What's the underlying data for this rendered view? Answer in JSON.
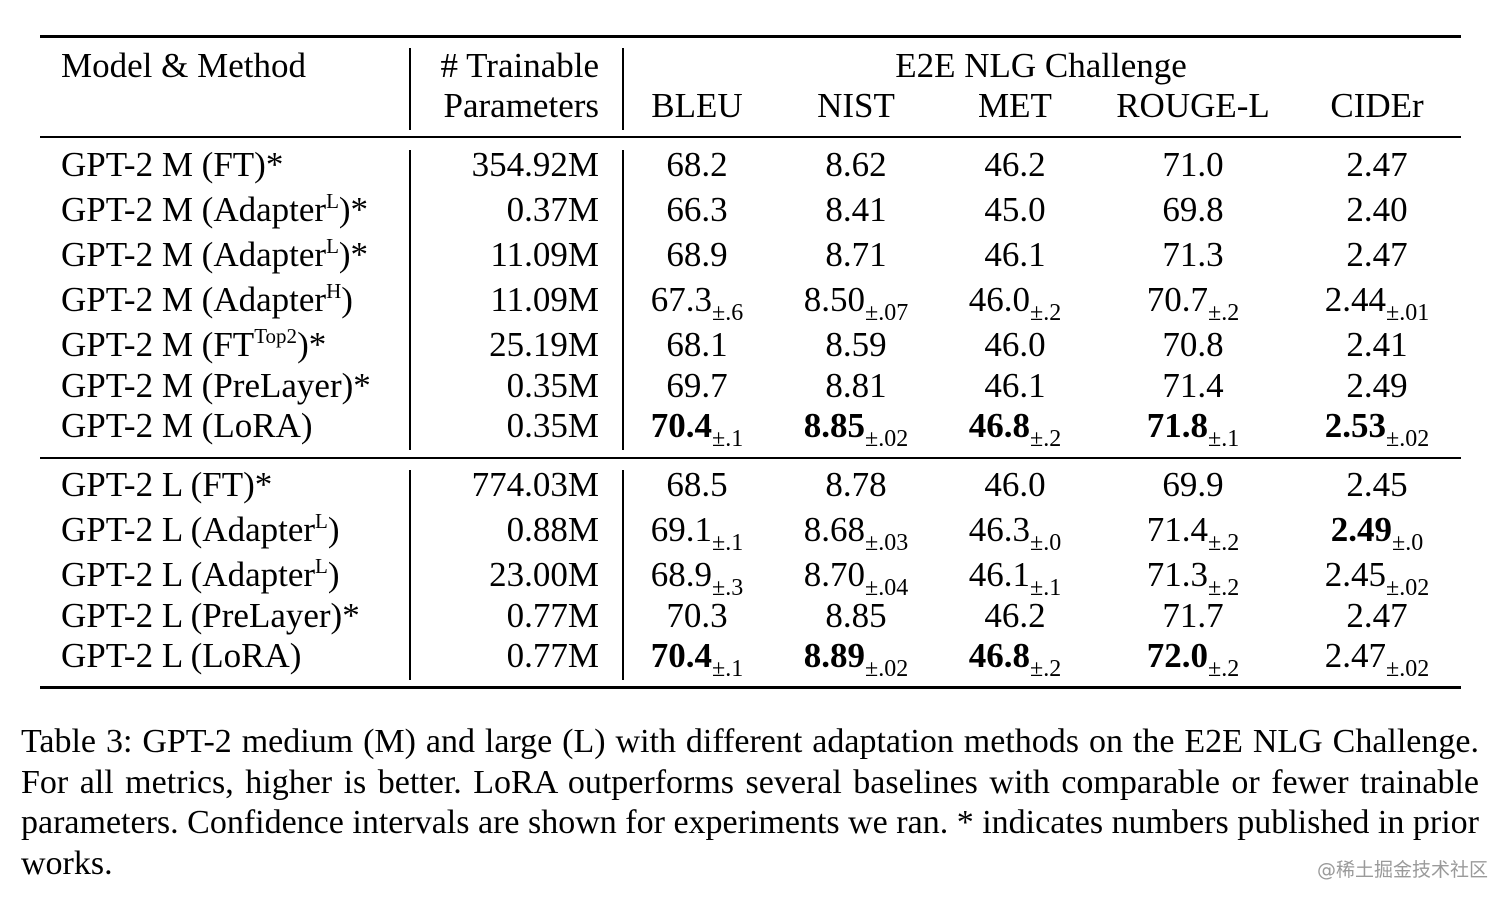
{
  "table": {
    "headers": {
      "model_method": "Model & Method",
      "trainable_line1": "# Trainable",
      "trainable_line2": "Parameters",
      "group": "E2E NLG Challenge",
      "metrics": [
        "BLEU",
        "NIST",
        "MET",
        "ROUGE-L",
        "CIDEr"
      ]
    },
    "groups": [
      {
        "rows": [
          {
            "model": "GPT-2 M (FT)*",
            "params": "354.92M",
            "values": [
              {
                "v": "68.2"
              },
              {
                "v": "8.62"
              },
              {
                "v": "46.2"
              },
              {
                "v": "71.0"
              },
              {
                "v": "2.47"
              }
            ]
          },
          {
            "model": "GPT-2 M (Adapter",
            "sup": "L",
            "suffix": ")*",
            "params": "0.37M",
            "values": [
              {
                "v": "66.3"
              },
              {
                "v": "8.41"
              },
              {
                "v": "45.0"
              },
              {
                "v": "69.8"
              },
              {
                "v": "2.40"
              }
            ]
          },
          {
            "model": "GPT-2 M (Adapter",
            "sup": "L",
            "suffix": ")*",
            "params": "11.09M",
            "values": [
              {
                "v": "68.9"
              },
              {
                "v": "8.71"
              },
              {
                "v": "46.1"
              },
              {
                "v": "71.3"
              },
              {
                "v": "2.47"
              }
            ]
          },
          {
            "model": "GPT-2 M (Adapter",
            "sup": "H",
            "suffix": ")",
            "params": "11.09M",
            "values": [
              {
                "v": "67.3",
                "ci": "±.6"
              },
              {
                "v": "8.50",
                "ci": "±.07"
              },
              {
                "v": "46.0",
                "ci": "±.2"
              },
              {
                "v": "70.7",
                "ci": "±.2"
              },
              {
                "v": "2.44",
                "ci": "±.01"
              }
            ]
          },
          {
            "model": "GPT-2 M (FT",
            "sup": "Top2",
            "suffix": ")*",
            "params": "25.19M",
            "values": [
              {
                "v": "68.1"
              },
              {
                "v": "8.59"
              },
              {
                "v": "46.0"
              },
              {
                "v": "70.8"
              },
              {
                "v": "2.41"
              }
            ]
          },
          {
            "model": "GPT-2 M (PreLayer)*",
            "params": "0.35M",
            "values": [
              {
                "v": "69.7"
              },
              {
                "v": "8.81"
              },
              {
                "v": "46.1"
              },
              {
                "v": "71.4"
              },
              {
                "v": "2.49"
              }
            ]
          },
          {
            "model": "GPT-2 M (LoRA)",
            "params": "0.35M",
            "values": [
              {
                "v": "70.4",
                "ci": "±.1",
                "bold": true
              },
              {
                "v": "8.85",
                "ci": "±.02",
                "bold": true
              },
              {
                "v": "46.8",
                "ci": "±.2",
                "bold": true
              },
              {
                "v": "71.8",
                "ci": "±.1",
                "bold": true
              },
              {
                "v": "2.53",
                "ci": "±.02",
                "bold": true
              }
            ]
          }
        ]
      },
      {
        "rows": [
          {
            "model": "GPT-2 L (FT)*",
            "params": "774.03M",
            "values": [
              {
                "v": "68.5"
              },
              {
                "v": "8.78"
              },
              {
                "v": "46.0"
              },
              {
                "v": "69.9"
              },
              {
                "v": "2.45"
              }
            ]
          },
          {
            "model": "GPT-2 L (Adapter",
            "sup": "L",
            "suffix": ")",
            "params": "0.88M",
            "values": [
              {
                "v": "69.1",
                "ci": "±.1"
              },
              {
                "v": "8.68",
                "ci": "±.03"
              },
              {
                "v": "46.3",
                "ci": "±.0"
              },
              {
                "v": "71.4",
                "ci": "±.2"
              },
              {
                "v": "2.49",
                "ci": "±.0",
                "bold": true
              }
            ]
          },
          {
            "model": "GPT-2 L (Adapter",
            "sup": "L",
            "suffix": ")",
            "params": "23.00M",
            "values": [
              {
                "v": "68.9",
                "ci": "±.3"
              },
              {
                "v": "8.70",
                "ci": "±.04"
              },
              {
                "v": "46.1",
                "ci": "±.1"
              },
              {
                "v": "71.3",
                "ci": "±.2"
              },
              {
                "v": "2.45",
                "ci": "±.02"
              }
            ]
          },
          {
            "model": "GPT-2 L (PreLayer)*",
            "params": "0.77M",
            "values": [
              {
                "v": "70.3"
              },
              {
                "v": "8.85"
              },
              {
                "v": "46.2"
              },
              {
                "v": "71.7"
              },
              {
                "v": "2.47"
              }
            ]
          },
          {
            "model": "GPT-2 L (LoRA)",
            "params": "0.77M",
            "values": [
              {
                "v": "70.4",
                "ci": "±.1",
                "bold": true
              },
              {
                "v": "8.89",
                "ci": "±.02",
                "bold": true
              },
              {
                "v": "46.8",
                "ci": "±.2",
                "bold": true
              },
              {
                "v": "72.0",
                "ci": "±.2",
                "bold": true
              },
              {
                "v": "2.47",
                "ci": "±.02"
              }
            ]
          }
        ]
      }
    ]
  },
  "caption": "Table 3: GPT-2 medium (M) and large (L) with different adaptation methods on the E2E NLG Challenge. For all metrics, higher is better. LoRA outperforms several baselines with comparable or fewer trainable parameters. Confidence intervals are shown for experiments we ran. * indicates numbers published in prior works.",
  "watermark": "@稀土掘金技术社区"
}
